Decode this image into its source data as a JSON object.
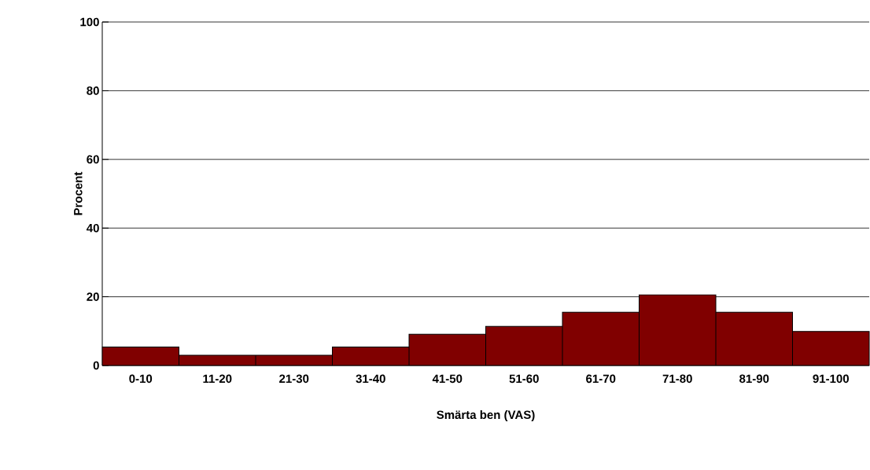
{
  "chart_data": {
    "type": "bar",
    "xlabel": "Smärta ben (VAS)",
    "ylabel": "Procent",
    "categories": [
      "0-10",
      "11-20",
      "21-30",
      "31-40",
      "41-50",
      "51-60",
      "61-70",
      "71-80",
      "81-90",
      "91-100"
    ],
    "values": [
      5.4,
      3.0,
      3.0,
      5.4,
      9.1,
      11.4,
      15.5,
      20.6,
      15.5,
      9.9
    ],
    "color": "#800000",
    "ylim": [
      0,
      100
    ],
    "yticks": [
      0,
      20,
      40,
      60,
      80,
      100
    ],
    "grid": "y"
  }
}
